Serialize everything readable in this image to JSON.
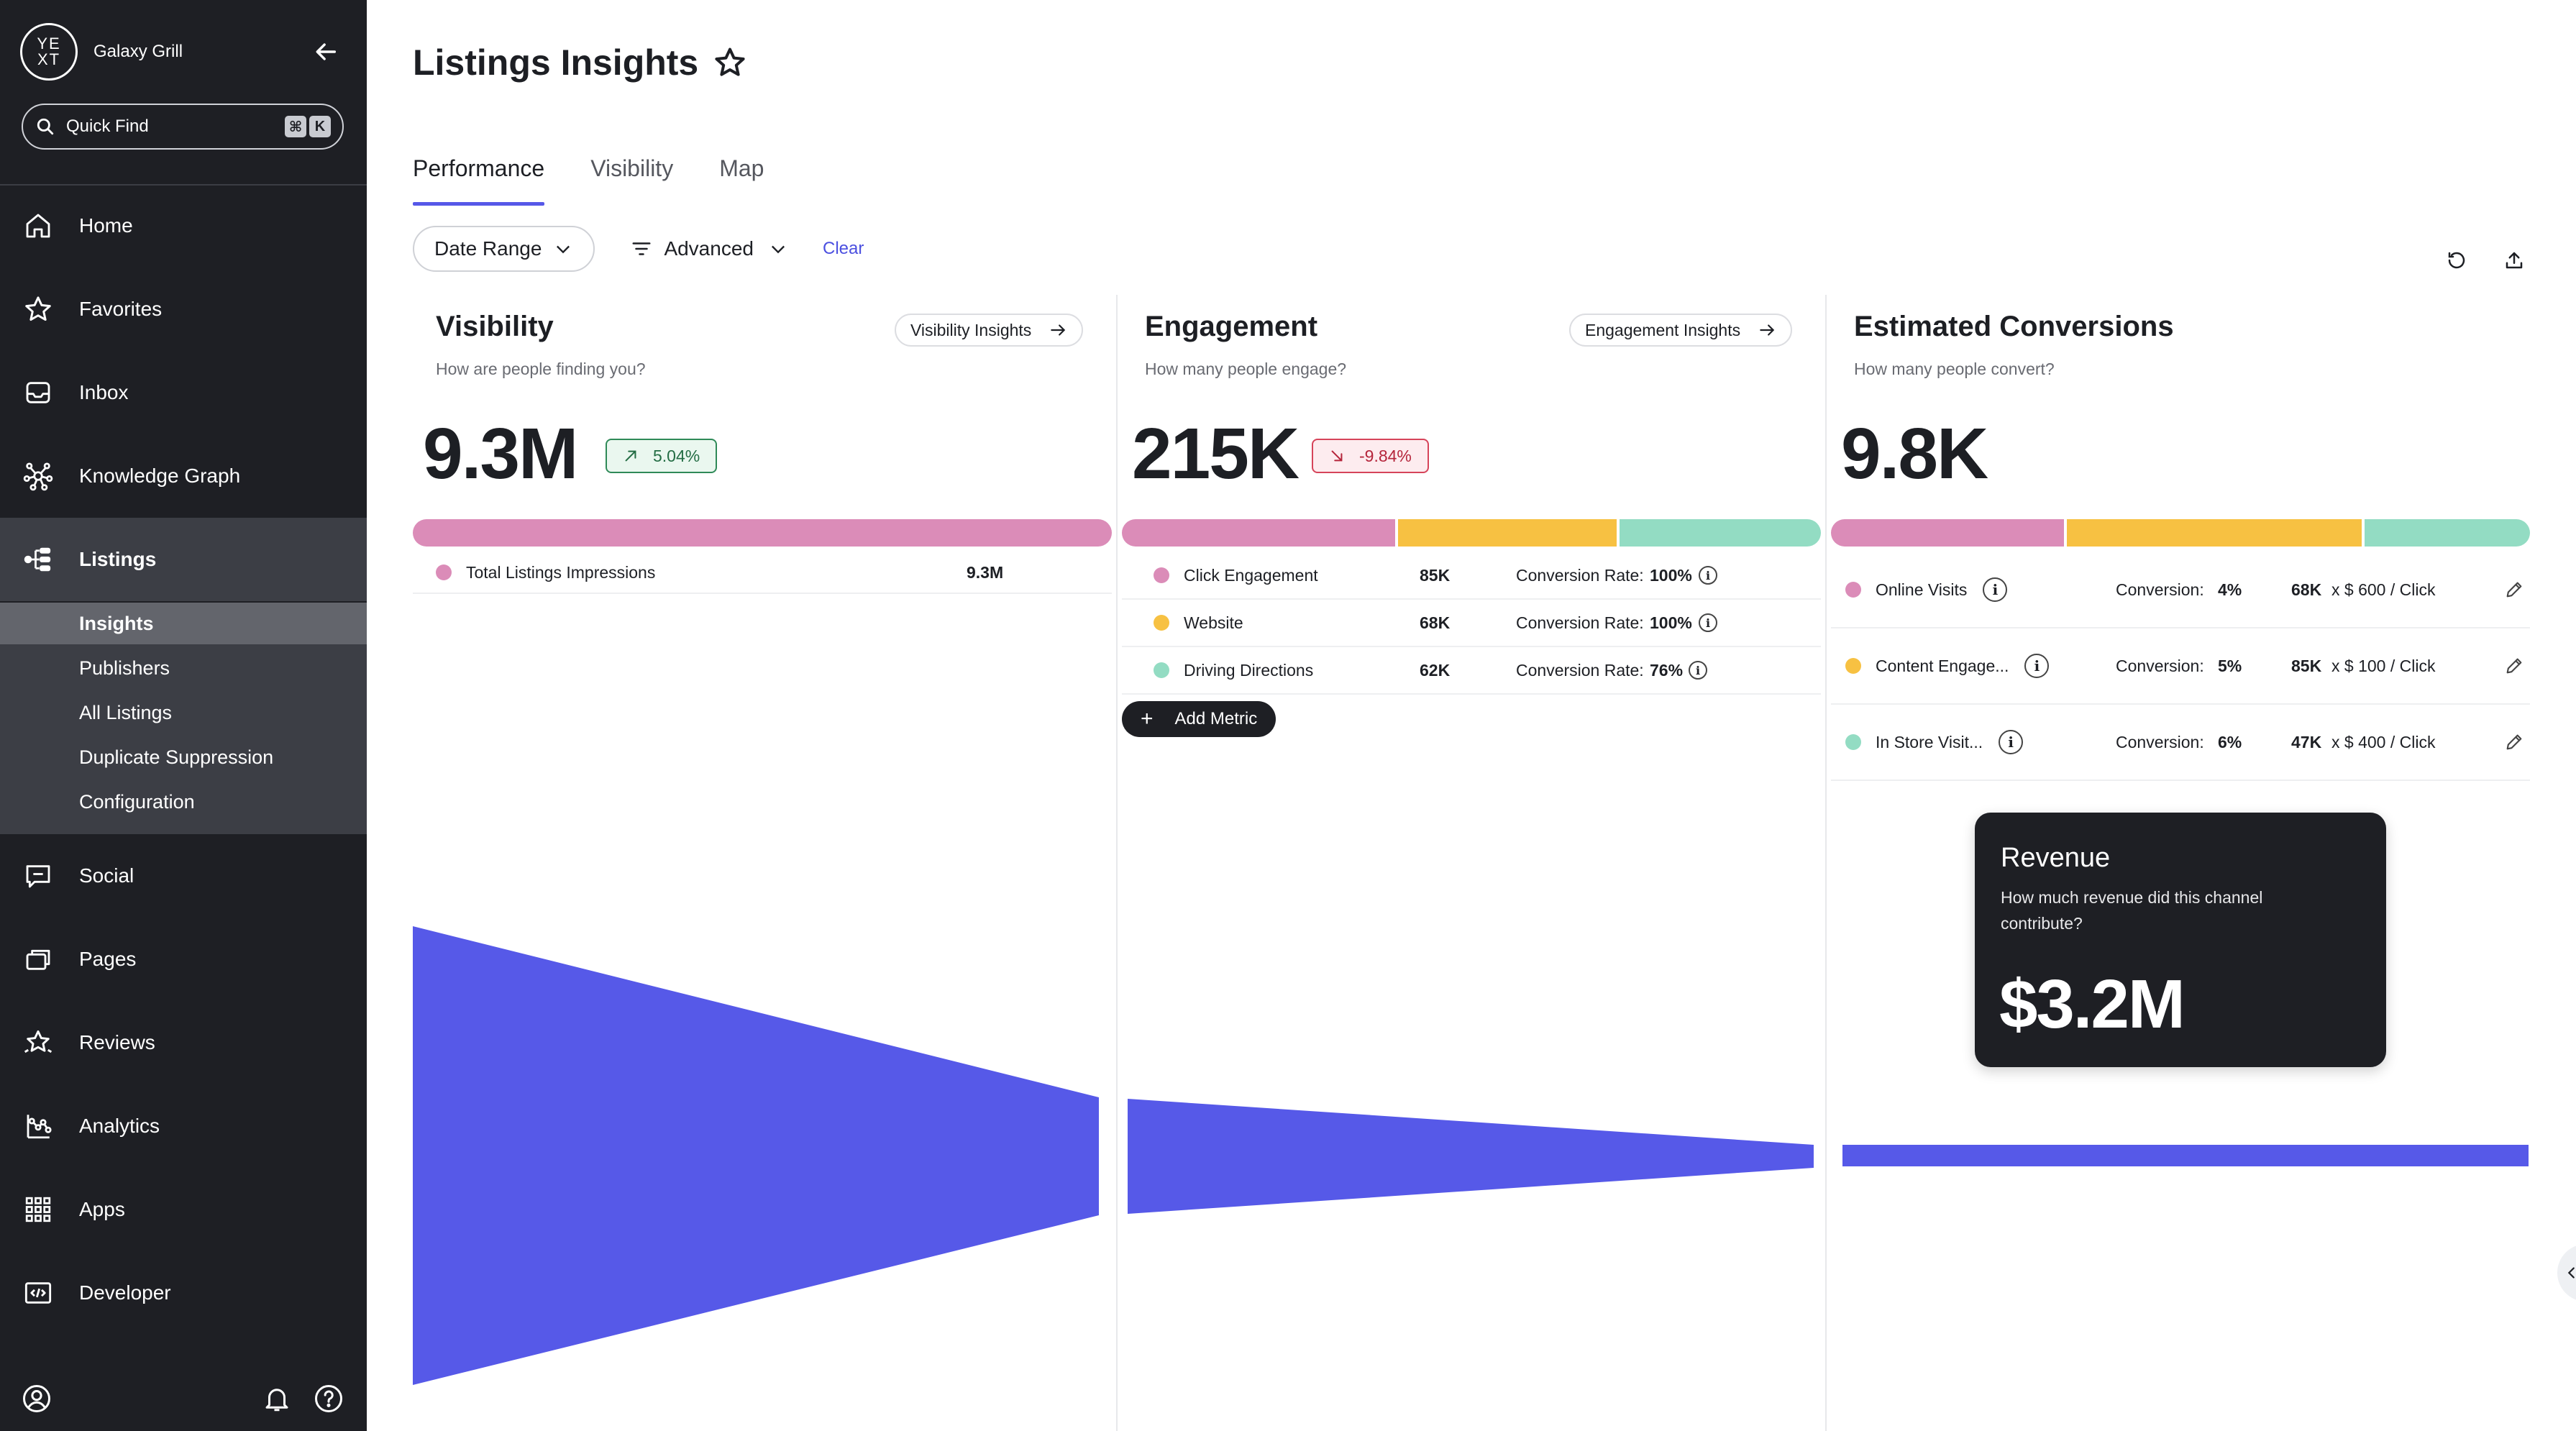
{
  "sidebar": {
    "brand_logo": "YE XT",
    "brand_name": "Galaxy Grill",
    "quick_find": {
      "label": "Quick Find",
      "shortcut_mod": "⌘",
      "shortcut_key": "K"
    },
    "items": [
      {
        "label": "Home",
        "icon": "home-icon"
      },
      {
        "label": "Favorites",
        "icon": "star-icon"
      },
      {
        "label": "Inbox",
        "icon": "inbox-icon"
      },
      {
        "label": "Knowledge Graph",
        "icon": "knowledge-graph-icon"
      },
      {
        "label": "Listings",
        "icon": "listings-icon"
      },
      {
        "label": "Social",
        "icon": "social-icon"
      },
      {
        "label": "Pages",
        "icon": "pages-icon"
      },
      {
        "label": "Reviews",
        "icon": "reviews-icon"
      },
      {
        "label": "Analytics",
        "icon": "analytics-icon"
      },
      {
        "label": "Apps",
        "icon": "apps-icon"
      },
      {
        "label": "Developer",
        "icon": "developer-icon"
      }
    ],
    "subitems": [
      "Insights",
      "Publishers",
      "All Listings",
      "Duplicate Suppression",
      "Configuration"
    ]
  },
  "page": {
    "title": "Listings Insights",
    "tabs": [
      "Performance",
      "Visibility",
      "Map"
    ],
    "filters": {
      "date_range": "Date Range",
      "advanced": "Advanced",
      "clear": "Clear"
    }
  },
  "colors": {
    "pink": "#db8cb8",
    "yellow": "#f7c142",
    "teal": "#93dcc3",
    "funnel": "#5659e8",
    "accent": "#4b4fe0"
  },
  "visibility": {
    "title": "Visibility",
    "subtitle": "How are people finding you?",
    "button": "Visibility Insights",
    "value": "9.3M",
    "delta": "5.04%",
    "metrics": [
      {
        "label": "Total Listings Impressions",
        "value": "9.3M"
      }
    ]
  },
  "engagement": {
    "title": "Engagement",
    "subtitle": "How many people engage?",
    "button": "Engagement Insights",
    "value": "215K",
    "delta": "-9.84%",
    "rate_label": "Conversion Rate:",
    "metrics": [
      {
        "label": "Click Engagement",
        "value": "85K",
        "rate": "100%"
      },
      {
        "label": "Website",
        "value": "68K",
        "rate": "100%"
      },
      {
        "label": "Driving Directions",
        "value": "62K",
        "rate": "76%"
      }
    ],
    "add_metric": "Add Metric"
  },
  "conversions": {
    "title": "Estimated Conversions",
    "subtitle": "How many people convert?",
    "value": "9.8K",
    "conv_label": "Conversion:",
    "metrics": [
      {
        "label": "Online Visits",
        "rate": "4%",
        "value": "68K",
        "price": "x $ 600 / Click"
      },
      {
        "label": "Content Engage...",
        "rate": "5%",
        "value": "85K",
        "price": "x $ 100 / Click"
      },
      {
        "label": "In Store Visit...",
        "rate": "6%",
        "value": "47K",
        "price": "x $ 400 / Click"
      }
    ]
  },
  "revenue": {
    "title": "Revenue",
    "subtitle": "How much revenue did this channel contribute?",
    "value": "$3.2M"
  }
}
